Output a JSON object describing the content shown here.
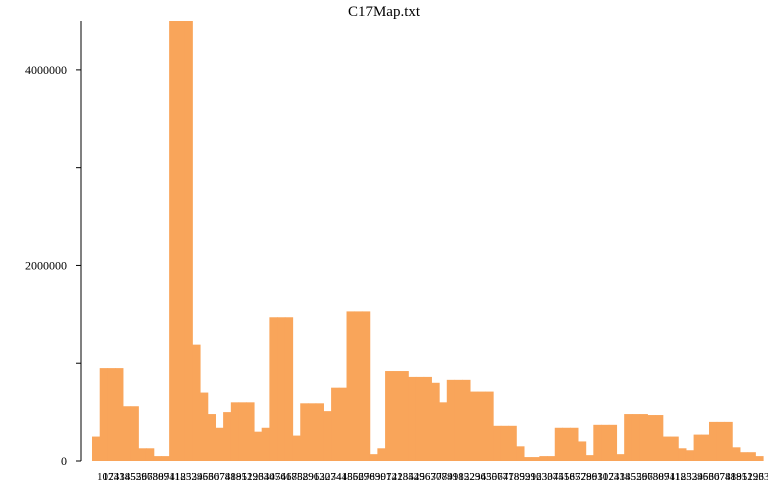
{
  "chart_data": {
    "type": "bar",
    "title": "C17Map.txt",
    "xlabel": "",
    "ylabel": "",
    "ylim": [
      0,
      4500000
    ],
    "yticks": [
      0,
      2000000,
      4000000
    ],
    "ytick_labels": [
      "0",
      "2000000",
      "4000000"
    ],
    "yticks_minor": [
      1000000,
      3000000
    ],
    "grid": false,
    "legend": "none",
    "bar_color": "#f9a55a",
    "xticks_note": "x tick labels are dense and illegible",
    "values": [
      250000,
      950000,
      950000,
      950000,
      560000,
      560000,
      130000,
      130000,
      50000,
      50000,
      4500000,
      4500000,
      4500000,
      1190000,
      700000,
      480000,
      340000,
      500000,
      600000,
      600000,
      600000,
      300000,
      340000,
      1470000,
      1470000,
      1470000,
      260000,
      590000,
      590000,
      590000,
      510000,
      750000,
      750000,
      1530000,
      1530000,
      1530000,
      70000,
      130000,
      920000,
      920000,
      920000,
      860000,
      860000,
      860000,
      800000,
      600000,
      830000,
      830000,
      830000,
      710000,
      710000,
      710000,
      360000,
      360000,
      360000,
      150000,
      40000,
      40000,
      50000,
      50000,
      340000,
      340000,
      340000,
      200000,
      60000,
      370000,
      370000,
      370000,
      70000,
      480000,
      480000,
      480000,
      470000,
      470000,
      250000,
      250000,
      130000,
      110000,
      270000,
      270000,
      400000,
      400000,
      400000,
      140000,
      90000,
      90000,
      50000
    ]
  }
}
